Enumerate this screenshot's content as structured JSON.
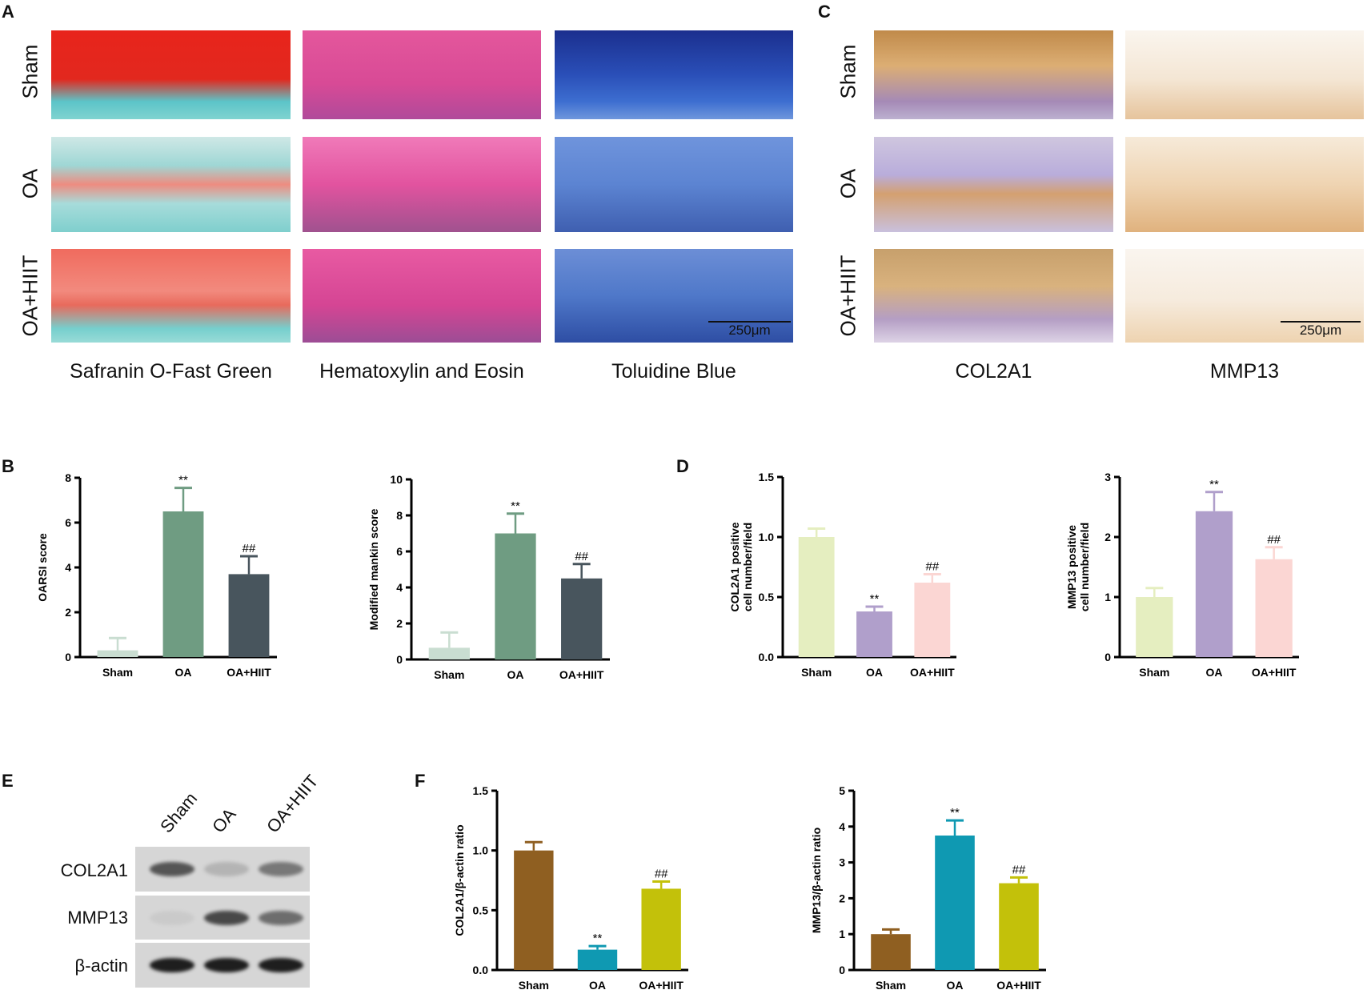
{
  "panels": {
    "A": "A",
    "B": "B",
    "C": "C",
    "D": "D",
    "E": "E",
    "F": "F"
  },
  "histology": {
    "rows": [
      "Sham",
      "OA",
      "OA+HIIT"
    ],
    "stains": [
      "Safranin O-Fast Green",
      "Hematoxylin and Eosin",
      "Toluidine Blue"
    ],
    "ihc": [
      "COL2A1",
      "MMP13"
    ],
    "scale_bar": "250μm"
  },
  "western_blot": {
    "lanes": [
      "Sham",
      "OA",
      "OA+HIIT"
    ],
    "proteins": [
      "COL2A1",
      "MMP13",
      "β-actin"
    ],
    "band_intensity": [
      [
        0.8,
        0.3,
        0.65
      ],
      [
        0.1,
        0.85,
        0.7
      ],
      [
        1,
        1,
        1
      ]
    ]
  },
  "chart_data": [
    {
      "type": "bar",
      "panel": "B",
      "title": "",
      "xlabel": "",
      "ylabel": "OARSI score",
      "categories": [
        "Sham",
        "OA",
        "OA+HIIT"
      ],
      "values": [
        0.3,
        6.5,
        3.7
      ],
      "errors": [
        0.55,
        1.05,
        0.8
      ],
      "annotations": [
        "",
        "**",
        "##"
      ],
      "ylim": [
        0,
        8
      ],
      "yticks": [
        "0",
        "2",
        "4",
        "6",
        "8"
      ],
      "colors": [
        "#c9ddd1",
        "#6f9c82",
        "#48555d"
      ]
    },
    {
      "type": "bar",
      "panel": "B",
      "title": "",
      "xlabel": "",
      "ylabel": "Modified mankin score",
      "categories": [
        "Sham",
        "OA",
        "OA+HIIT"
      ],
      "values": [
        0.65,
        7.0,
        4.5
      ],
      "errors": [
        0.85,
        1.1,
        0.8
      ],
      "annotations": [
        "",
        "**",
        "##"
      ],
      "ylim": [
        0,
        10
      ],
      "yticks": [
        "0",
        "2",
        "4",
        "6",
        "8",
        "10"
      ],
      "colors": [
        "#c9ddd1",
        "#6f9c82",
        "#48555d"
      ]
    },
    {
      "type": "bar",
      "panel": "D",
      "title": "",
      "xlabel": "",
      "ylabel": "COL2A1 positive|cell number/field",
      "categories": [
        "Sham",
        "OA",
        "OA+HIIT"
      ],
      "values": [
        1.0,
        0.38,
        0.62
      ],
      "errors": [
        0.07,
        0.04,
        0.07
      ],
      "annotations": [
        "",
        "**",
        "##"
      ],
      "ylim": [
        0,
        1.5
      ],
      "yticks": [
        "0.0",
        "0.5",
        "1.0",
        "1.5"
      ],
      "colors": [
        "#e5eec0",
        "#b09fcb",
        "#fbd6d3"
      ]
    },
    {
      "type": "bar",
      "panel": "D",
      "title": "",
      "xlabel": "",
      "ylabel": "MMP13 positive|cell number/field",
      "categories": [
        "Sham",
        "OA",
        "OA+HIIT"
      ],
      "values": [
        1.0,
        2.43,
        1.63
      ],
      "errors": [
        0.15,
        0.32,
        0.2
      ],
      "annotations": [
        "",
        "**",
        "##"
      ],
      "ylim": [
        0,
        3
      ],
      "yticks": [
        "0",
        "1",
        "2",
        "3"
      ],
      "colors": [
        "#e5eec0",
        "#b09fcb",
        "#fbd6d3"
      ]
    },
    {
      "type": "bar",
      "panel": "F",
      "title": "",
      "xlabel": "",
      "ylabel": "COL2A1/β-actin ratio",
      "categories": [
        "Sham",
        "OA",
        "OA+HIIT"
      ],
      "values": [
        1.0,
        0.17,
        0.68
      ],
      "errors": [
        0.07,
        0.03,
        0.06
      ],
      "annotations": [
        "",
        "**",
        "##"
      ],
      "ylim": [
        0,
        1.5
      ],
      "yticks": [
        "0.0",
        "0.5",
        "1.0",
        "1.5"
      ],
      "colors": [
        "#8f5f21",
        "#0f99b2",
        "#c3c10a"
      ]
    },
    {
      "type": "bar",
      "panel": "F",
      "title": "",
      "xlabel": "",
      "ylabel": "MMP13/β-actin ratio",
      "categories": [
        "Sham",
        "OA",
        "OA+HIIT"
      ],
      "values": [
        1.0,
        3.75,
        2.42
      ],
      "errors": [
        0.13,
        0.42,
        0.16
      ],
      "annotations": [
        "",
        "**",
        "##"
      ],
      "ylim": [
        0,
        5
      ],
      "yticks": [
        "0",
        "1",
        "2",
        "3",
        "4",
        "5"
      ],
      "colors": [
        "#8f5f21",
        "#0f99b2",
        "#c3c10a"
      ]
    }
  ]
}
